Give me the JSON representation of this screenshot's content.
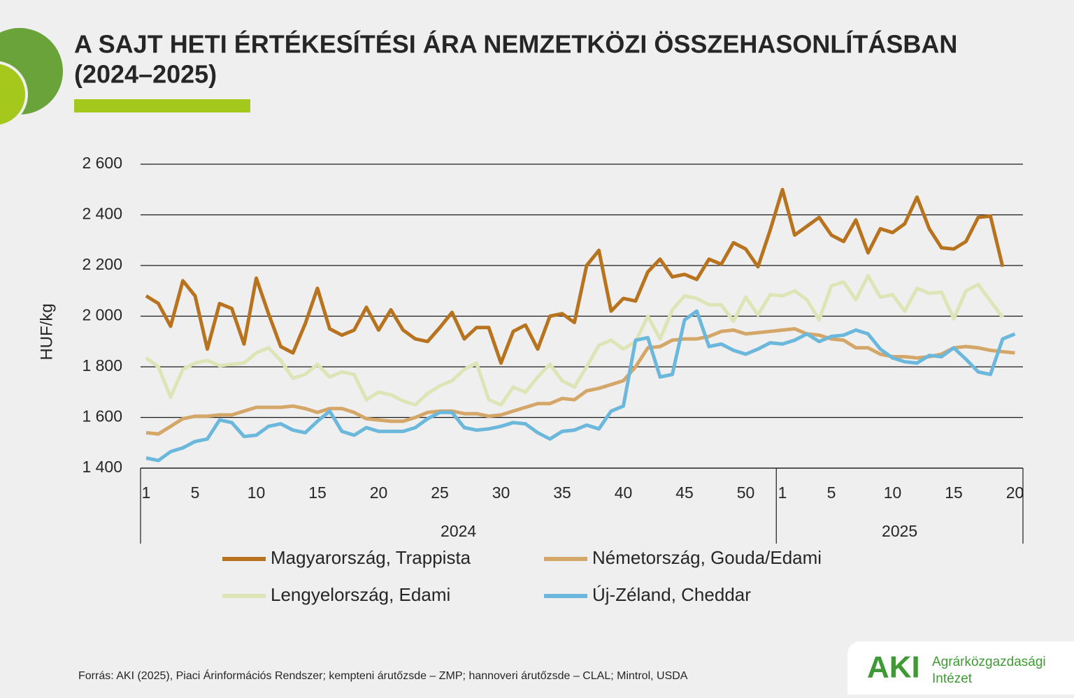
{
  "chart_data": {
    "type": "line",
    "title": [
      "A SAJT HETI ÉRTÉKESÍTÉSI ÁRA NEMZETKÖZI ÖSSZEHASONLÍTÁSBAN",
      "(2024–2025)"
    ],
    "y_label": "HUF/kg",
    "categories": [
      "1",
      null,
      null,
      null,
      "5",
      null,
      null,
      null,
      null,
      "10",
      null,
      null,
      null,
      null,
      "15",
      null,
      null,
      null,
      null,
      "20",
      null,
      null,
      null,
      null,
      "25",
      null,
      null,
      null,
      null,
      "30",
      null,
      null,
      null,
      null,
      "35",
      null,
      null,
      null,
      null,
      "40",
      null,
      null,
      null,
      null,
      "45",
      null,
      null,
      null,
      null,
      "50",
      null,
      null,
      "1",
      null,
      null,
      null,
      "5",
      null,
      null,
      null,
      null,
      "10",
      null,
      null,
      null,
      null,
      "15",
      null,
      null,
      null,
      null,
      "20"
    ],
    "year_labels": [
      "2024",
      "2025"
    ],
    "ylim": [
      1400,
      2600
    ],
    "yticks": [
      {
        "value": 1400,
        "label": "1 400"
      },
      {
        "value": 1600,
        "label": "1 600"
      },
      {
        "value": 1800,
        "label": "1 800"
      },
      {
        "value": 2000,
        "label": "2 000"
      },
      {
        "value": 2200,
        "label": "2 200"
      },
      {
        "value": 2400,
        "label": "2 400"
      },
      {
        "value": 2600,
        "label": "2 600"
      }
    ],
    "grid": true,
    "series": [
      {
        "name": "Magyarország, Trappista",
        "color": "#b8731f",
        "values": [
          2080,
          2050,
          1960,
          2140,
          2080,
          1870,
          2050,
          2030,
          1890,
          2150,
          2010,
          1880,
          1855,
          1970,
          2110,
          1950,
          1925,
          1945,
          2035,
          1945,
          2025,
          1945,
          1910,
          1900,
          1955,
          2015,
          1910,
          1955,
          1955,
          1815,
          1940,
          1965,
          1870,
          2000,
          2010,
          1975,
          2200,
          2260,
          2020,
          2070,
          2060,
          2175,
          2225,
          2155,
          2165,
          2145,
          2225,
          2205,
          2290,
          2265,
          2195,
          2340,
          2500,
          2320,
          2355,
          2390,
          2320,
          2295,
          2380,
          2250,
          2345,
          2330,
          2365,
          2470,
          2345,
          2270,
          2265,
          2295,
          2390,
          2395,
          2195,
          null
        ]
      },
      {
        "name": "Németország, Gouda/Edami",
        "color": "#d4a668",
        "values": [
          1540,
          1535,
          1565,
          1595,
          1605,
          1605,
          1610,
          1610,
          1625,
          1640,
          1640,
          1640,
          1645,
          1635,
          1620,
          1635,
          1635,
          1620,
          1595,
          1590,
          1585,
          1585,
          1600,
          1620,
          1625,
          1625,
          1615,
          1615,
          1605,
          1610,
          1625,
          1640,
          1655,
          1655,
          1675,
          1670,
          1705,
          1715,
          1730,
          1745,
          1800,
          1875,
          1880,
          1905,
          1910,
          1910,
          1920,
          1940,
          1945,
          1930,
          1935,
          1940,
          1945,
          1950,
          1930,
          1925,
          1910,
          1905,
          1875,
          1875,
          1850,
          1840,
          1840,
          1835,
          1840,
          1850,
          1875,
          1880,
          1875,
          1865,
          1860,
          1855
        ]
      },
      {
        "name": "Lengyelország, Edami",
        "color": "#dde5b6",
        "values": [
          1835,
          1800,
          1680,
          1790,
          1815,
          1825,
          1805,
          1810,
          1815,
          1855,
          1875,
          1825,
          1755,
          1770,
          1810,
          1760,
          1780,
          1770,
          1670,
          1700,
          1690,
          1665,
          1650,
          1695,
          1725,
          1745,
          1790,
          1815,
          1670,
          1650,
          1720,
          1700,
          1760,
          1810,
          1745,
          1720,
          1800,
          1885,
          1905,
          1870,
          1900,
          2000,
          1910,
          2025,
          2080,
          2070,
          2045,
          2045,
          1980,
          2075,
          2005,
          2085,
          2080,
          2100,
          2065,
          1985,
          2120,
          2135,
          2065,
          2160,
          2075,
          2085,
          2020,
          2110,
          2090,
          2095,
          1990,
          2100,
          2125,
          2060,
          1995,
          null
        ]
      },
      {
        "name": "Új-Zéland, Cheddar",
        "color": "#6bb8dc",
        "values": [
          1440,
          1430,
          1465,
          1480,
          1505,
          1515,
          1590,
          1580,
          1525,
          1530,
          1565,
          1575,
          1550,
          1540,
          1585,
          1625,
          1545,
          1530,
          1560,
          1545,
          1545,
          1545,
          1560,
          1595,
          1620,
          1620,
          1560,
          1550,
          1555,
          1565,
          1580,
          1575,
          1540,
          1515,
          1545,
          1550,
          1570,
          1555,
          1625,
          1645,
          1905,
          1915,
          1760,
          1770,
          1985,
          2020,
          1880,
          1890,
          1865,
          1850,
          1870,
          1895,
          1890,
          1905,
          1930,
          1900,
          1920,
          1925,
          1945,
          1930,
          1870,
          1835,
          1820,
          1815,
          1845,
          1840,
          1875,
          1830,
          1780,
          1770,
          1910,
          1930
        ]
      }
    ],
    "source": "Forrás: AKI (2025), Piaci Árinformációs Rendszer; kempteni árutőzsde – ZMP; hannoveri árutőzsde – CLAL; Mintrol, USDA"
  },
  "logo": {
    "abbr": "AKI",
    "name_lines": [
      "Agrárközgazdasági",
      "Intézet"
    ]
  }
}
